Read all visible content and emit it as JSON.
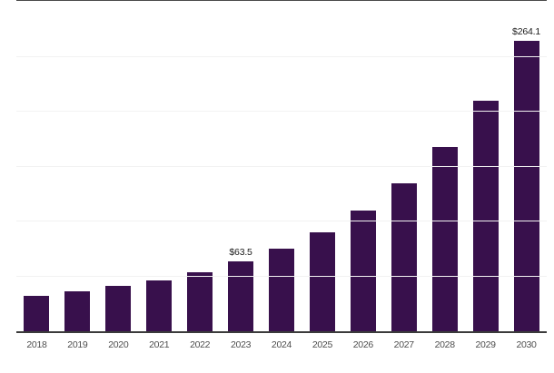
{
  "chart_data": {
    "type": "bar",
    "title": "",
    "xlabel": "",
    "ylabel": "",
    "categories": [
      "2018",
      "2019",
      "2020",
      "2021",
      "2022",
      "2023",
      "2024",
      "2025",
      "2026",
      "2027",
      "2028",
      "2029",
      "2030"
    ],
    "values": [
      32.1,
      36.2,
      41.6,
      46.2,
      53.9,
      63.5,
      74.9,
      90.0,
      109.9,
      134.9,
      167.6,
      210.0,
      264.1
    ],
    "data_labels": [
      "",
      "",
      "",
      "",
      "",
      "$63.5",
      "",
      "",
      "",
      "",
      "",
      "",
      "$264.1"
    ],
    "ylim": [
      0,
      300
    ],
    "gridline_step": 50,
    "grid": "horizontal-unlabeled",
    "legend": "none",
    "colors": {
      "bar": "#38104c",
      "gridline": "#f2f2f2",
      "axis_line": "#3b3b3b",
      "top_border": "#4a4a4a",
      "tick_label": "#4d4d4d",
      "data_label": "#1a1a1a",
      "background": "#ffffff"
    }
  }
}
